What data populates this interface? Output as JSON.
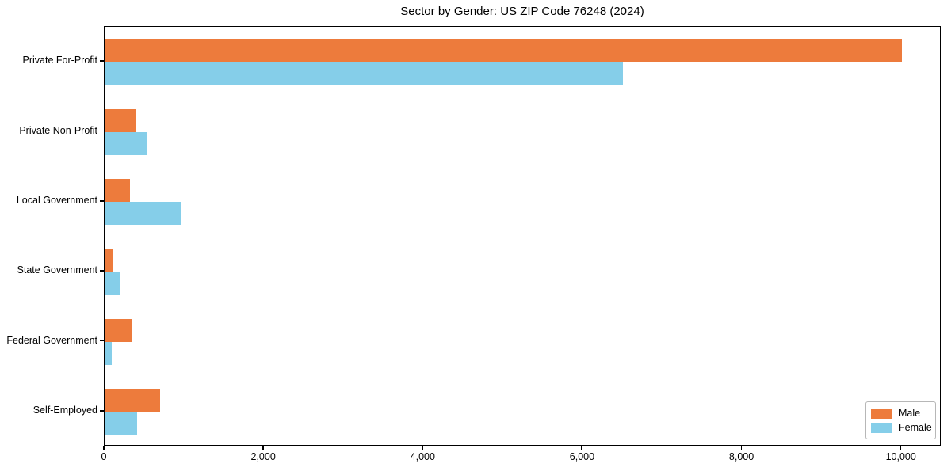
{
  "title": "Sector by Gender: US ZIP Code 76248 (2024)",
  "chart_data": {
    "type": "bar",
    "orientation": "horizontal",
    "title": "Sector by Gender: US ZIP Code 76248 (2024)",
    "categories": [
      "Private For-Profit",
      "Private Non-Profit",
      "Local Government",
      "State Government",
      "Federal Government",
      "Self-Employed"
    ],
    "series": [
      {
        "name": "Male",
        "color": "#ed7b3c",
        "values": [
          10000,
          390,
          320,
          110,
          350,
          700
        ]
      },
      {
        "name": "Female",
        "color": "#85cee9",
        "values": [
          6500,
          530,
          960,
          200,
          90,
          410
        ]
      }
    ],
    "xlabel": "",
    "ylabel": "",
    "xlim": [
      0,
      10500
    ],
    "xticks": [
      0,
      2000,
      4000,
      6000,
      8000,
      10000
    ],
    "xtick_labels": [
      "0",
      "2,000",
      "4,000",
      "6,000",
      "8,000",
      "10,000"
    ],
    "grid": false,
    "legend": {
      "position": "lower right",
      "entries": [
        "Male",
        "Female"
      ]
    }
  }
}
